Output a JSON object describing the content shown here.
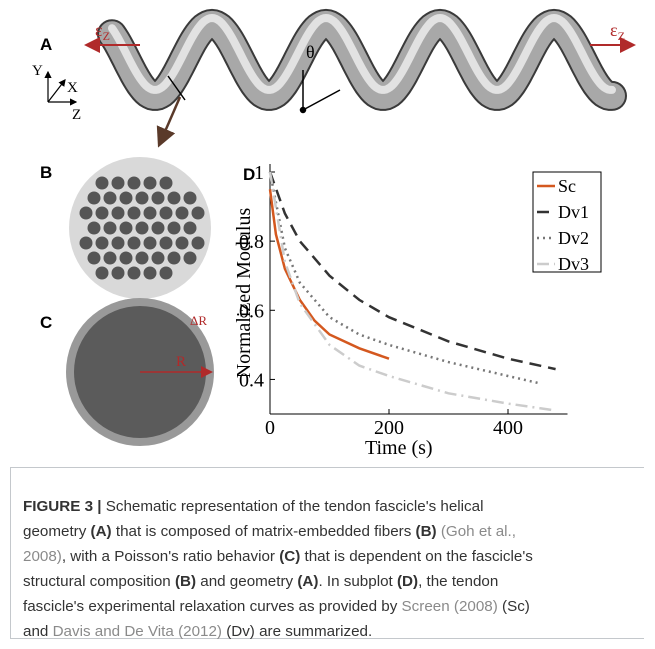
{
  "panels": {
    "a": {
      "label": "A",
      "strain_left": {
        "symbol": "ε",
        "subscript": "Z"
      },
      "strain_right": {
        "symbol": "ε",
        "subscript": "Z"
      },
      "angle": "θ",
      "axes": [
        "Y",
        "X",
        "Z"
      ]
    },
    "b": {
      "label": "B"
    },
    "c": {
      "label": "C",
      "radius": "R",
      "thickness": "ΔR"
    },
    "d": {
      "label": "D"
    }
  },
  "chart_data": {
    "type": "line",
    "xlabel": "Time (s)",
    "ylabel": "Normalized Modulus",
    "xlim": [
      0,
      500
    ],
    "xticks": [
      0,
      200,
      400
    ],
    "ylim": [
      0.3,
      1
    ],
    "yticks": [
      0.4,
      0.6,
      0.8,
      1
    ],
    "legend": "upper right",
    "series": [
      {
        "name": "Sc",
        "color": "#d4581f",
        "dash": "solid",
        "x": [
          0,
          10,
          25,
          50,
          75,
          100,
          150,
          200
        ],
        "values": [
          0.95,
          0.82,
          0.72,
          0.63,
          0.57,
          0.53,
          0.49,
          0.46
        ]
      },
      {
        "name": "Dv1",
        "color": "#333333",
        "dash": "dashed",
        "x": [
          0,
          25,
          50,
          100,
          150,
          200,
          300,
          400,
          480
        ],
        "values": [
          1,
          0.88,
          0.8,
          0.7,
          0.63,
          0.58,
          0.51,
          0.46,
          0.43
        ]
      },
      {
        "name": "Dv2",
        "color": "#777777",
        "dash": "dotted",
        "x": [
          0,
          25,
          50,
          100,
          150,
          200,
          300,
          400,
          450
        ],
        "values": [
          1,
          0.78,
          0.68,
          0.58,
          0.53,
          0.5,
          0.45,
          0.41,
          0.39
        ]
      },
      {
        "name": "Dv3",
        "color": "#cccccc",
        "dash": "dashdot",
        "x": [
          0,
          25,
          50,
          100,
          150,
          200,
          300,
          400,
          480
        ],
        "values": [
          1,
          0.74,
          0.62,
          0.5,
          0.44,
          0.41,
          0.36,
          0.33,
          0.31
        ]
      }
    ]
  },
  "caption": {
    "lines": [
      [
        {
          "text": "FIGURE 3 |",
          "style": "bold"
        },
        {
          "text": " Schematic representation of the tendon fascicle's helical",
          "style": "plain"
        }
      ],
      [
        {
          "text": "geometry ",
          "style": "plain"
        },
        {
          "text": "(A)",
          "style": "bold"
        },
        {
          "text": " that is composed of matrix-embedded fibers ",
          "style": "plain"
        },
        {
          "text": "(B)",
          "style": "bold"
        },
        {
          "text": " (Goh et al.,",
          "style": "link"
        }
      ],
      [
        {
          "text": "2008)",
          "style": "link"
        },
        {
          "text": ", with a Poisson's ratio behavior ",
          "style": "plain"
        },
        {
          "text": "(C)",
          "style": "bold"
        },
        {
          "text": " that is dependent on the fascicle's",
          "style": "plain"
        }
      ],
      [
        {
          "text": "structural composition ",
          "style": "plain"
        },
        {
          "text": "(B)",
          "style": "bold"
        },
        {
          "text": " and geometry ",
          "style": "plain"
        },
        {
          "text": "(A)",
          "style": "bold"
        },
        {
          "text": ". In subplot ",
          "style": "plain"
        },
        {
          "text": "(D)",
          "style": "bold"
        },
        {
          "text": ", the tendon",
          "style": "plain"
        }
      ],
      [
        {
          "text": "fascicle's experimental relaxation curves as provided by ",
          "style": "plain"
        },
        {
          "text": "Screen (2008)",
          "style": "link"
        },
        {
          "text": " (Sc)",
          "style": "plain"
        }
      ],
      [
        {
          "text": "and ",
          "style": "plain"
        },
        {
          "text": "Davis and De Vita (2012)",
          "style": "link"
        },
        {
          "text": " (Dv) are summarized.",
          "style": "plain"
        }
      ]
    ]
  }
}
